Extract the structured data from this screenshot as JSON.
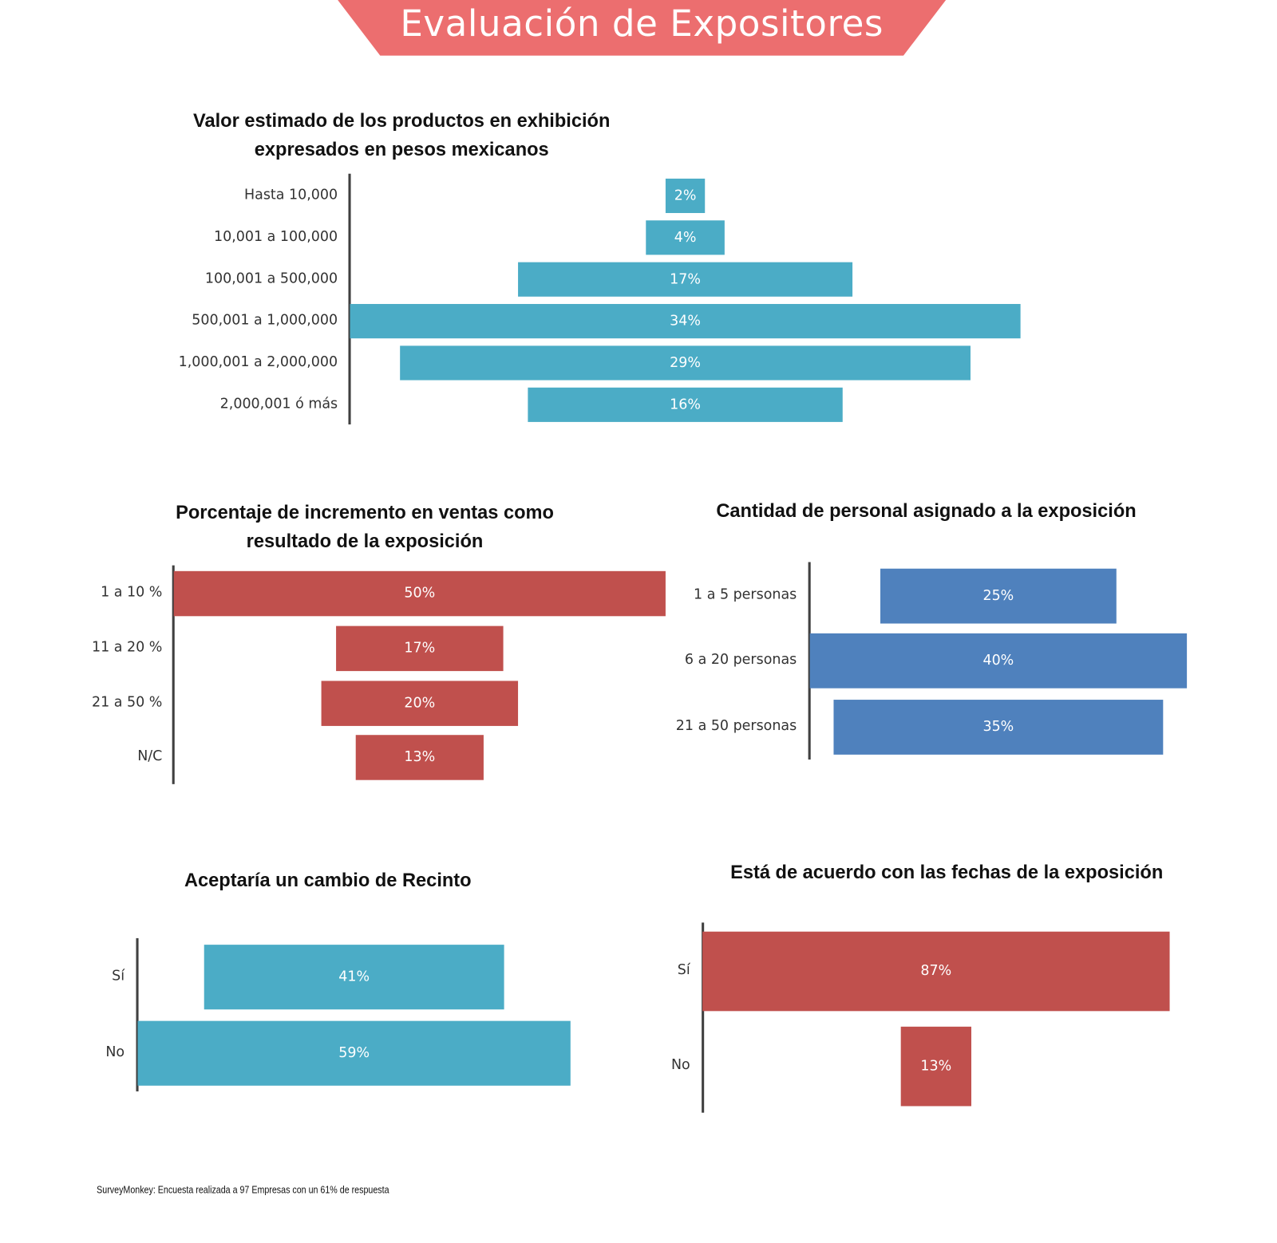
{
  "header": {
    "title": "Evaluación de Expositores"
  },
  "chart_data": [
    {
      "type": "bar",
      "orientation": "horizontal-funnel",
      "title": "Valor estimado de los productos  en exhibición expresados en pesos mexicanos",
      "title_lines": [
        "Valor estimado de los productos  en exhibición",
        "expresados en pesos mexicanos"
      ],
      "categories": [
        "Hasta 10,000",
        "10,001 a 100,000",
        "100,001 a 500,000",
        "500,001 a 1,000,000",
        "1,000,001 a 2,000,000",
        "2,000,001 ó más"
      ],
      "values": [
        2,
        4,
        17,
        34,
        29,
        16
      ],
      "labels": [
        "2%",
        "4%",
        "17%",
        "34%",
        "29%",
        "16%"
      ],
      "color": "#4bacc6",
      "unit": "%"
    },
    {
      "type": "bar",
      "orientation": "horizontal-funnel",
      "title": "Porcentaje  de incremento en ventas como resultado de la exposición",
      "title_lines": [
        "Porcentaje  de incremento en ventas como",
        "resultado de la exposición"
      ],
      "categories": [
        "1 a 10 %",
        "11 a 20 %",
        "21 a 50 %",
        "N/C"
      ],
      "values": [
        50,
        17,
        20,
        13
      ],
      "labels": [
        "50%",
        "17%",
        "20%",
        "13%"
      ],
      "color": "#c0504d",
      "unit": "%"
    },
    {
      "type": "bar",
      "orientation": "horizontal-funnel",
      "title": "Cantidad de personal asignado a la exposición",
      "title_lines": [
        "Cantidad de personal asignado a la exposición"
      ],
      "categories": [
        "1 a 5 personas",
        "6 a 20 personas",
        "21 a 50 personas"
      ],
      "values": [
        25,
        40,
        35
      ],
      "labels": [
        "25%",
        "40%",
        "35%"
      ],
      "color": "#4f81bd",
      "unit": "%"
    },
    {
      "type": "bar",
      "orientation": "horizontal-funnel",
      "title": "Aceptaría un cambio de Recinto",
      "title_lines": [
        "Aceptaría un cambio de Recinto"
      ],
      "categories": [
        "Sí",
        "No"
      ],
      "values": [
        41,
        59
      ],
      "labels": [
        "41%",
        "59%"
      ],
      "color": "#4bacc6",
      "unit": "%"
    },
    {
      "type": "bar",
      "orientation": "horizontal-funnel",
      "title": "Está de acuerdo con las fechas de la exposición",
      "title_lines": [
        "Está de acuerdo con las fechas de la exposición"
      ],
      "categories": [
        "Sí",
        "No"
      ],
      "values": [
        87,
        13
      ],
      "labels": [
        "87%",
        "13%"
      ],
      "color": "#c0504d",
      "unit": "%"
    }
  ],
  "footer": {
    "source": "SurveyMonkey: Encuesta realizada a 97 Empresas con un 61% de respuesta"
  }
}
